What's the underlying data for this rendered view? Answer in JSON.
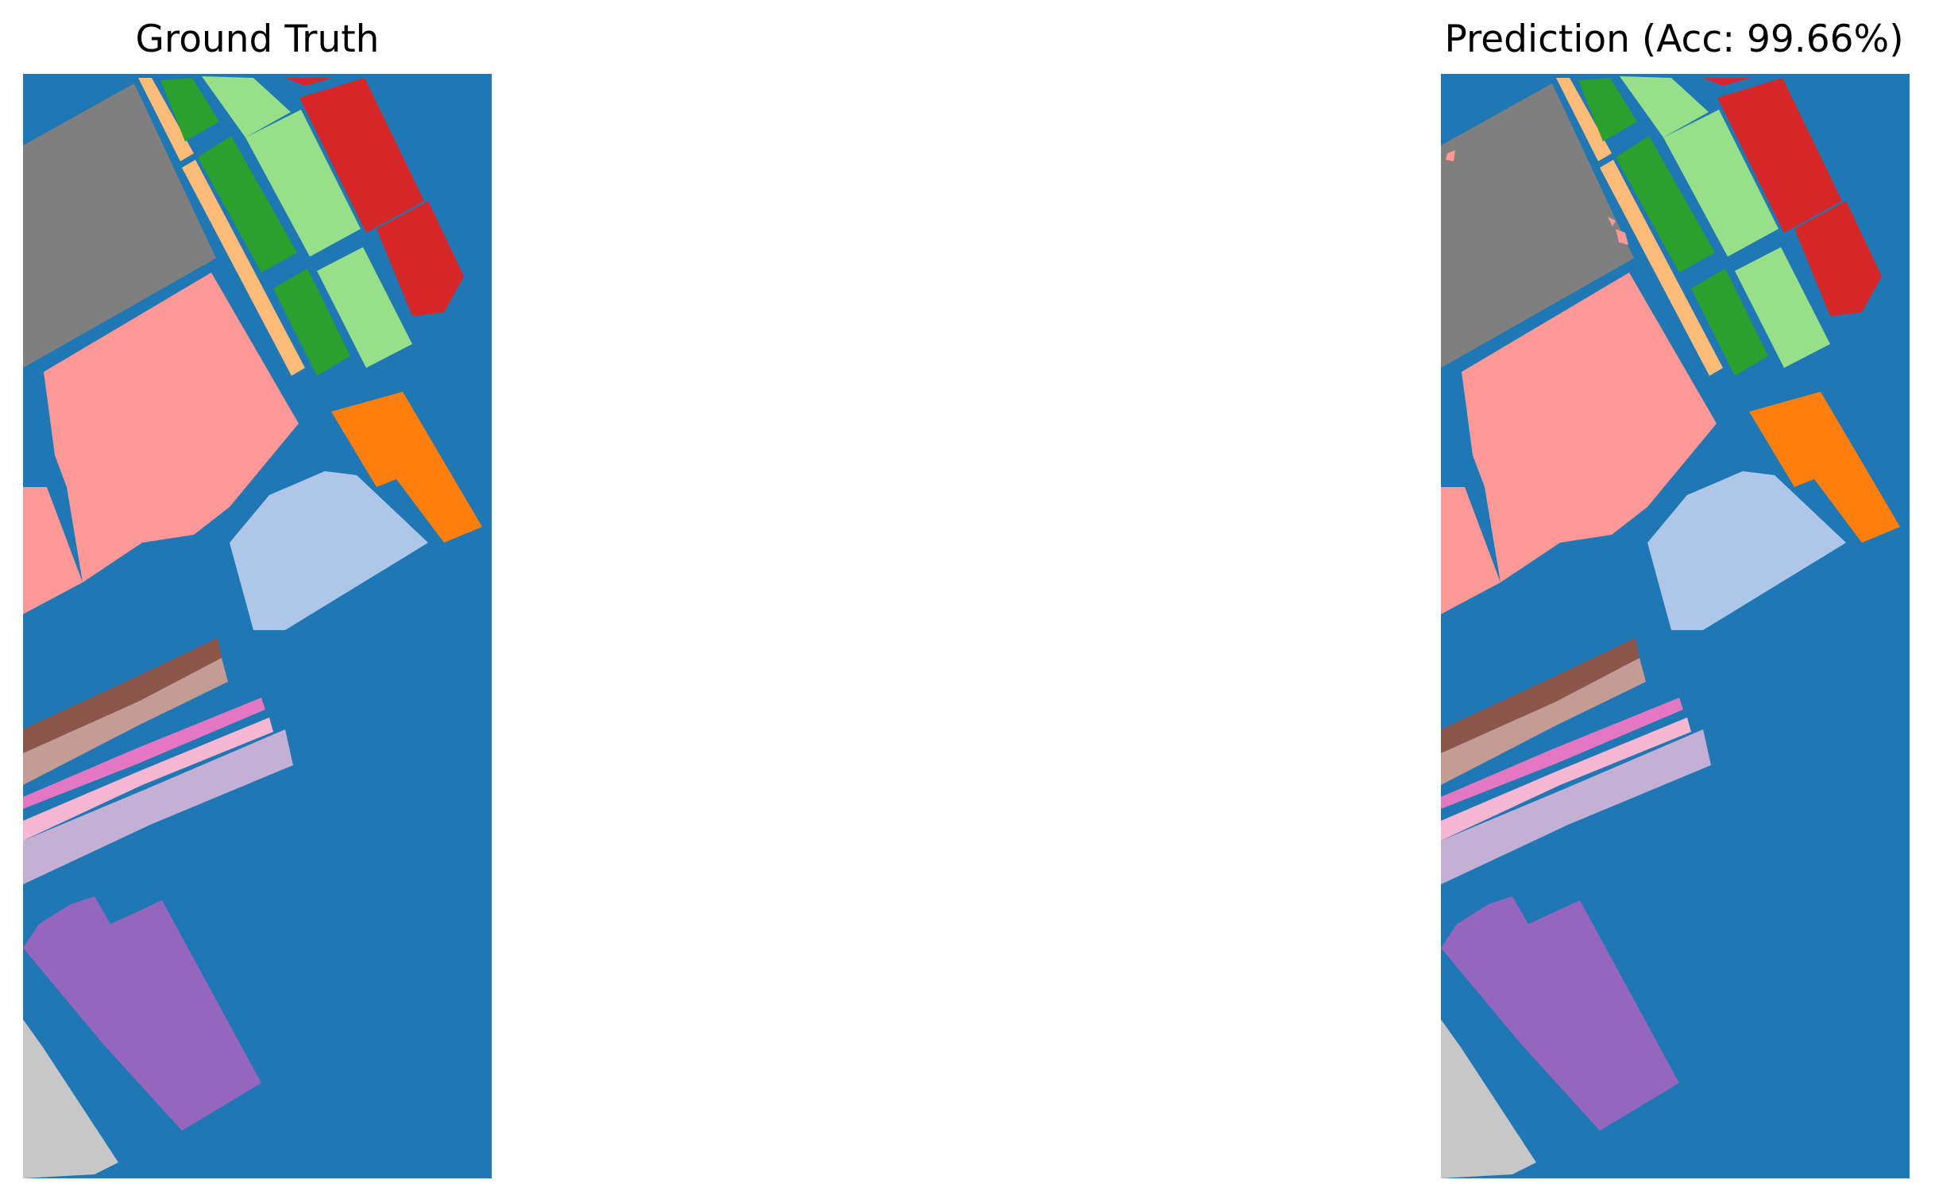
{
  "panels": [
    {
      "title": "Ground Truth"
    },
    {
      "title": "Prediction (Acc: 99.66%)"
    }
  ],
  "colors": {
    "background": "#1f77b4",
    "gray": "#7f7f7f",
    "salmon": "#ff9896",
    "light_orange": "#ffbb78",
    "dark_green": "#2ca02c",
    "light_green": "#98df8a",
    "red": "#d62728",
    "orange": "#ff7f0e",
    "light_blue": "#aec7e8",
    "brown": "#8c564b",
    "tan": "#c49c94",
    "pink": "#e377c2",
    "light_pink": "#f7b6d2",
    "lavender": "#c5b0d5",
    "purple": "#9467bd",
    "light_gray": "#c7c7c7"
  }
}
